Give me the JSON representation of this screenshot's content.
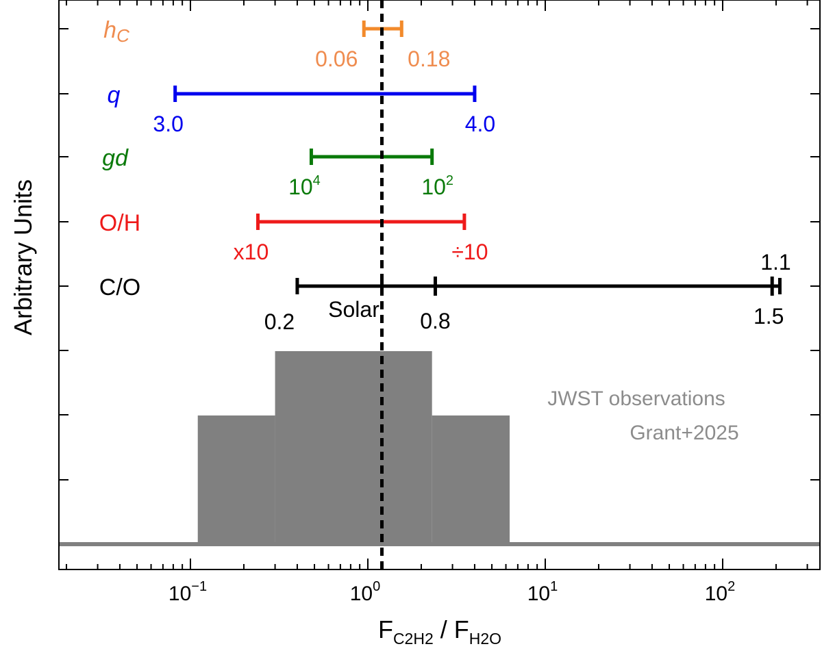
{
  "chart_data": {
    "type": "bar",
    "ylabel": "Arbitrary Units",
    "xlabel": {
      "main": "F",
      "sub1": "C2H2",
      "mid": " / F",
      "sub2": "H2O"
    },
    "xscale": "log",
    "xlim": [
      0.02,
      320
    ],
    "x_ticks": [
      {
        "value": 0.1,
        "base": "10",
        "exp": "−1"
      },
      {
        "value": 1,
        "base": "10",
        "exp": "0"
      },
      {
        "value": 10,
        "base": "10",
        "exp": "1"
      },
      {
        "value": 100,
        "base": "10",
        "exp": "2"
      }
    ],
    "solar_line": {
      "x": 1.2
    },
    "histogram": {
      "label": "JWST observations",
      "citation": "Grant+2025",
      "color": "#808080",
      "baseline": 0,
      "steps": [
        {
          "x0": 0.11,
          "x1": 0.3,
          "height": 2
        },
        {
          "x0": 0.3,
          "x1": 2.3,
          "height": 3
        },
        {
          "x0": 2.3,
          "x1": 6.3,
          "height": 2
        }
      ]
    },
    "ranges": [
      {
        "name": "hc",
        "name_prefix": "h",
        "name_sub": "C",
        "color": "#f28a2b",
        "label_color": "#ef8c4f",
        "x_low": 0.95,
        "x_high": 1.55,
        "low_label": "0.06",
        "low_exp": "",
        "high_label": "0.18",
        "high_exp": ""
      },
      {
        "name": "q",
        "name_prefix": "q",
        "name_sub": "",
        "color": "#0000ee",
        "label_color": "#0000ee",
        "x_low": 0.082,
        "x_high": 4.0,
        "low_label": "3.0",
        "low_exp": "",
        "high_label": "4.0",
        "high_exp": ""
      },
      {
        "name": "gd",
        "name_prefix": "gd",
        "name_sub": "",
        "color": "#0a7a0a",
        "label_color": "#0a7a0a",
        "x_low": 0.48,
        "x_high": 2.3,
        "low_label": "10",
        "low_exp": "4",
        "high_label": "10",
        "high_exp": "2"
      },
      {
        "name": "O/H",
        "name_prefix": "O/H",
        "name_sub": "",
        "color": "#ee1a1a",
        "label_color": "#ee1a1a",
        "x_low": 0.24,
        "x_high": 3.5,
        "low_label": "x10",
        "low_exp": "",
        "high_label": "÷10",
        "high_exp": ""
      },
      {
        "name": "C/O",
        "name_prefix": "C/O",
        "name_sub": "",
        "color": "#000000",
        "label_color": "#000000",
        "x_low": 0.4,
        "x_high": 210,
        "low_label": "0.2",
        "low_exp": "",
        "high_label": "1.1",
        "high_exp": ""
      }
    ],
    "co_markers": [
      {
        "x": 1.2,
        "label": "Solar"
      },
      {
        "x": 2.4,
        "label": "0.8"
      },
      {
        "x": 190,
        "label": "1.5"
      }
    ]
  }
}
